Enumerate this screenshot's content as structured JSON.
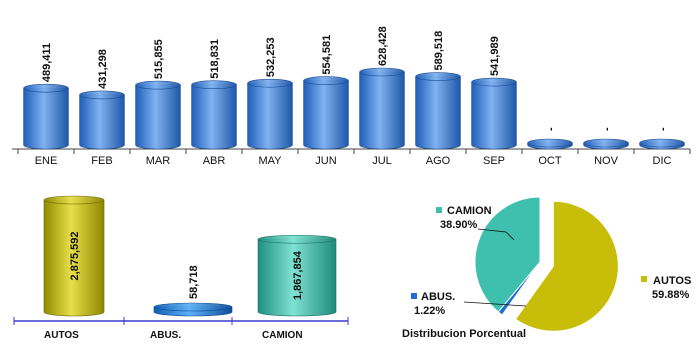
{
  "chart_data": [
    {
      "type": "bar",
      "categories": [
        "ENE",
        "FEB",
        "MAR",
        "ABR",
        "MAY",
        "JUN",
        "JUL",
        "AGO",
        "SEP",
        "OCT",
        "NOV",
        "DIC"
      ],
      "values": [
        489411,
        431298,
        515855,
        518831,
        532253,
        554581,
        628428,
        589518,
        541989,
        0,
        0,
        0
      ],
      "data_labels": [
        "489,411",
        "431,298",
        "515,855",
        "518,831",
        "532,253",
        "554,581",
        "628,428",
        "589,518",
        "541,989",
        "-",
        "-",
        "-"
      ],
      "bar_color": "#3f7fd8",
      "grid": false
    },
    {
      "type": "bar",
      "categories": [
        "AUTOS",
        "ABUS.",
        "CAMION"
      ],
      "values": [
        2875592,
        58718,
        1867854
      ],
      "data_labels": [
        "2,875,592",
        "58,718",
        "1,867,854"
      ],
      "colors": [
        "#c8c014",
        "#1f7fd8",
        "#3fbfae"
      ],
      "grid": false
    },
    {
      "type": "pie",
      "title": "Distribucion Porcentual",
      "slices": [
        {
          "name": "AUTOS",
          "value": 59.88,
          "label": "59.88%",
          "color": "#c8be0a"
        },
        {
          "name": "ABUS.",
          "value": 1.22,
          "label": "1.22%",
          "color": "#1f6fd0"
        },
        {
          "name": "CAMION",
          "value": 38.9,
          "label": "38.90%",
          "color": "#3fbfae"
        }
      ],
      "exploded": "AUTOS"
    }
  ]
}
